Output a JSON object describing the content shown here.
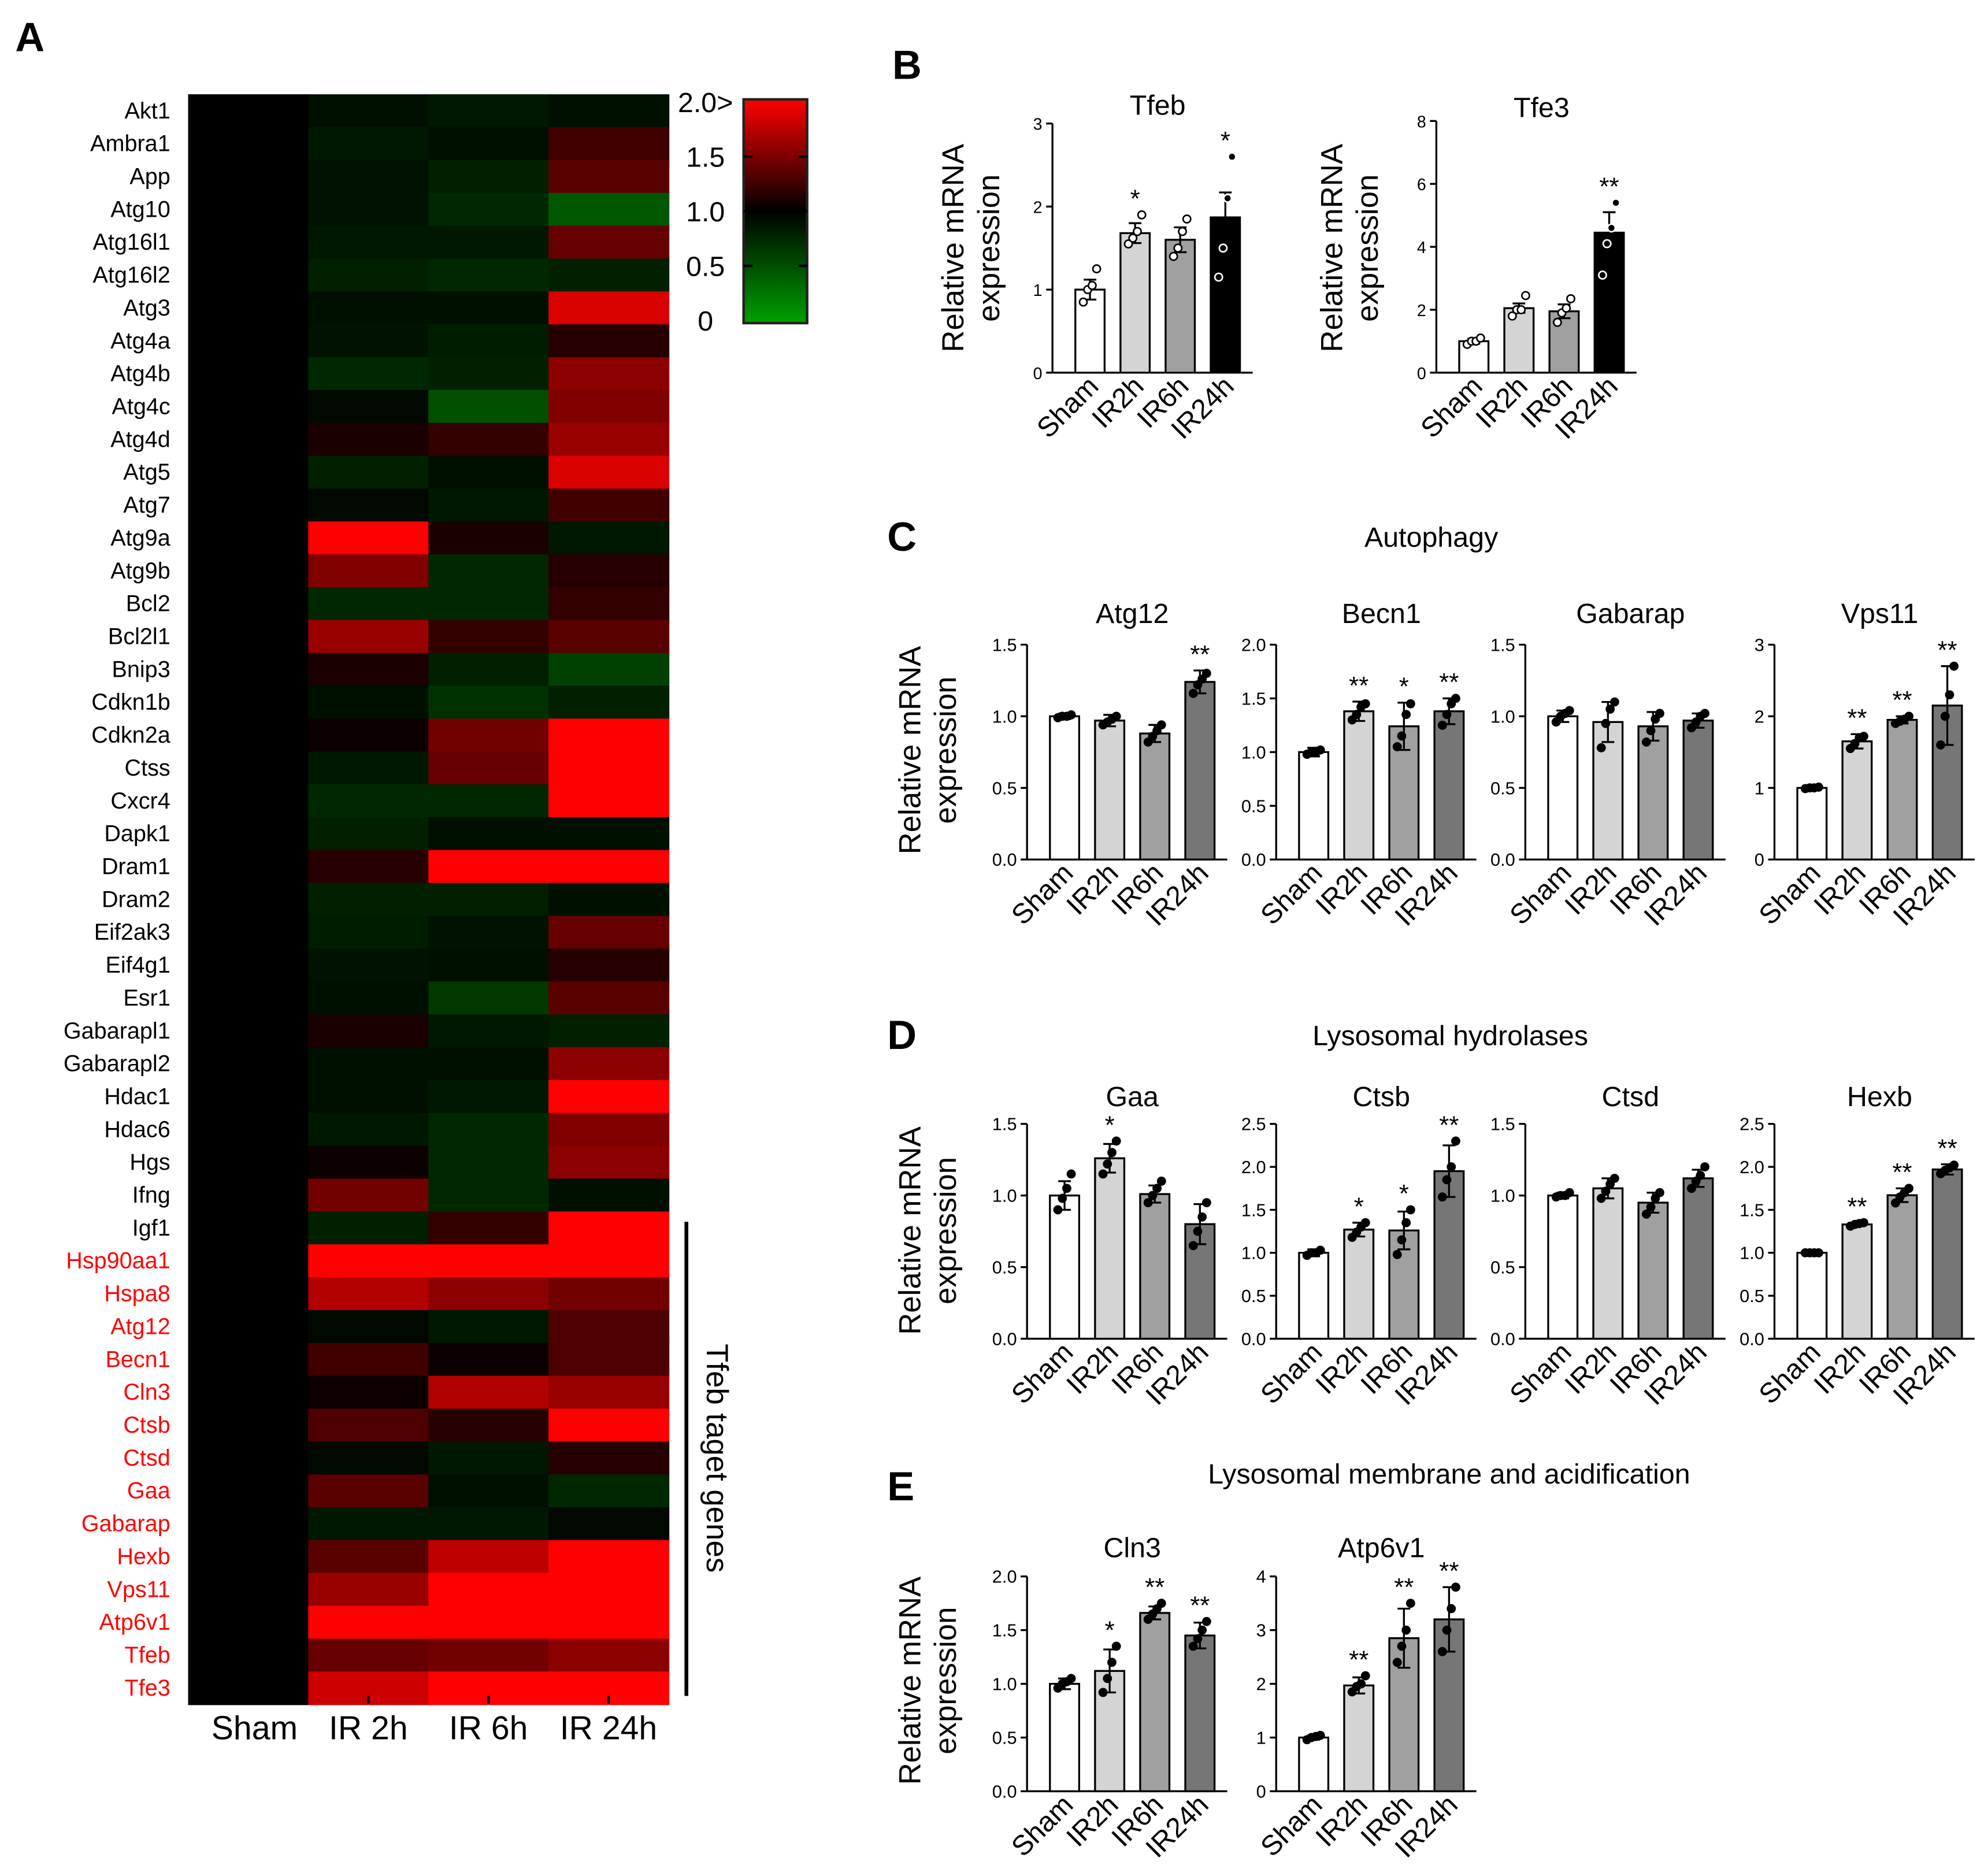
{
  "panels": {
    "A": {
      "letter": "A",
      "genes": [
        "Akt1",
        "Ambra1",
        "App",
        "Atg10",
        "Atg16l1",
        "Atg16l2",
        "Atg3",
        "Atg4a",
        "Atg4b",
        "Atg4c",
        "Atg4d",
        "Atg5",
        "Atg7",
        "Atg9a",
        "Atg9b",
        "Bcl2",
        "Bcl2l1",
        "Bnip3",
        "Cdkn1b",
        "Cdkn2a",
        "Ctss",
        "Cxcr4",
        "Dapk1",
        "Dram1",
        "Dram2",
        "Eif2ak3",
        "Eif4g1",
        "Esr1",
        "Gabarapl1",
        "Gabarapl2",
        "Hdac1",
        "Hdac6",
        "Hgs",
        "Ifng",
        "Igf1",
        "Hsp90aa1",
        "Hspa8",
        "Atg12",
        "Becn1",
        "Cln3",
        "Ctsb",
        "Ctsd",
        "Gaa",
        "Gabarap",
        "Hexb",
        "Vps11",
        "Atp6v1",
        "Tfeb",
        "Tfe3"
      ],
      "highlight_from_index": 35,
      "highlight_color": "#ff0000",
      "columns": [
        "Sham",
        "IR 2h",
        "IR 6h",
        "IR 24h"
      ],
      "side_label": "Tfeb taget genes",
      "colorbar": {
        "ticks": [
          "2.0>",
          "1.5",
          "1.0",
          "0.5",
          "0"
        ],
        "high_color": "#ff0000",
        "mid_color": "#000000",
        "low_color": "#00a000"
      }
    },
    "B": {
      "letter": "B"
    },
    "C": {
      "letter": "C",
      "title": "Autophagy"
    },
    "D": {
      "letter": "D",
      "title": "Lysosomal hydrolases"
    },
    "E": {
      "letter": "E",
      "title": "Lysosomal membrane and acidification"
    }
  },
  "ylabel_line1": "Relative mRNA",
  "ylabel_line2": "expression",
  "chart_data": [
    {
      "type": "heatmap",
      "panel": "A",
      "x": [
        "Sham",
        "IR 2h",
        "IR 6h",
        "IR 24h"
      ],
      "y": [
        "Akt1",
        "Ambra1",
        "App",
        "Atg10",
        "Atg16l1",
        "Atg16l2",
        "Atg3",
        "Atg4a",
        "Atg4b",
        "Atg4c",
        "Atg4d",
        "Atg5",
        "Atg7",
        "Atg9a",
        "Atg9b",
        "Bcl2",
        "Bcl2l1",
        "Bnip3",
        "Cdkn1b",
        "Cdkn2a",
        "Ctss",
        "Cxcr4",
        "Dapk1",
        "Dram1",
        "Dram2",
        "Eif2ak3",
        "Eif4g1",
        "Esr1",
        "Gabarapl1",
        "Gabarapl2",
        "Hdac1",
        "Hdac6",
        "Hgs",
        "Ifng",
        "Igf1",
        "Hsp90aa1",
        "Hspa8",
        "Atg12",
        "Becn1",
        "Cln3",
        "Ctsb",
        "Ctsd",
        "Gaa",
        "Gabarap",
        "Hexb",
        "Vps11",
        "Atp6v1",
        "Tfeb",
        "Tfe3"
      ],
      "values": [
        [
          1.0,
          0.9,
          0.85,
          0.9
        ],
        [
          1.0,
          0.85,
          0.9,
          1.25
        ],
        [
          1.0,
          0.88,
          0.8,
          1.35
        ],
        [
          1.0,
          0.88,
          0.75,
          0.45
        ],
        [
          1.0,
          0.85,
          0.85,
          1.4
        ],
        [
          1.0,
          0.8,
          0.75,
          0.8
        ],
        [
          1.0,
          0.9,
          0.9,
          1.85
        ],
        [
          1.0,
          0.88,
          0.82,
          1.15
        ],
        [
          1.0,
          0.75,
          0.8,
          1.55
        ],
        [
          1.0,
          0.95,
          0.5,
          1.5
        ],
        [
          1.0,
          1.1,
          1.2,
          1.6
        ],
        [
          1.0,
          0.8,
          0.9,
          1.85
        ],
        [
          1.0,
          0.95,
          0.85,
          1.25
        ],
        [
          1.0,
          2.0,
          1.1,
          0.85
        ],
        [
          1.0,
          1.5,
          0.75,
          1.15
        ],
        [
          1.0,
          0.75,
          0.75,
          1.2
        ],
        [
          1.0,
          1.6,
          1.2,
          1.35
        ],
        [
          1.0,
          1.1,
          0.8,
          0.6
        ],
        [
          1.0,
          0.9,
          0.7,
          0.8
        ],
        [
          1.0,
          1.05,
          1.45,
          2.0
        ],
        [
          1.0,
          0.85,
          1.4,
          2.0
        ],
        [
          1.0,
          0.75,
          0.75,
          2.0
        ],
        [
          1.0,
          0.8,
          0.9,
          0.9
        ],
        [
          1.0,
          1.15,
          2.0,
          2.0
        ],
        [
          1.0,
          0.8,
          0.8,
          0.9
        ],
        [
          1.0,
          0.82,
          0.88,
          1.4
        ],
        [
          1.0,
          0.88,
          0.9,
          1.15
        ],
        [
          1.0,
          0.9,
          0.65,
          1.35
        ],
        [
          1.0,
          1.1,
          0.85,
          0.8
        ],
        [
          1.0,
          0.9,
          0.9,
          1.55
        ],
        [
          1.0,
          0.9,
          0.85,
          2.0
        ],
        [
          1.0,
          0.85,
          0.75,
          1.5
        ],
        [
          1.0,
          1.05,
          0.75,
          1.55
        ],
        [
          1.0,
          1.45,
          0.75,
          0.9
        ],
        [
          1.0,
          0.8,
          1.2,
          2.0
        ],
        [
          1.0,
          2.0,
          2.0,
          2.0
        ],
        [
          1.0,
          1.7,
          1.55,
          1.45
        ],
        [
          1.0,
          0.95,
          0.85,
          1.3
        ],
        [
          1.0,
          1.25,
          1.05,
          1.3
        ],
        [
          1.0,
          1.05,
          1.7,
          1.6
        ],
        [
          1.0,
          1.3,
          1.15,
          2.0
        ],
        [
          1.0,
          0.95,
          0.85,
          1.15
        ],
        [
          1.0,
          1.35,
          0.9,
          0.75
        ],
        [
          1.0,
          0.85,
          0.85,
          0.95
        ],
        [
          1.0,
          1.35,
          1.75,
          2.0
        ],
        [
          1.0,
          1.6,
          2.0,
          2.0
        ],
        [
          1.0,
          2.0,
          2.0,
          2.0
        ],
        [
          1.0,
          1.4,
          1.45,
          1.55
        ],
        [
          1.0,
          1.8,
          2.0,
          2.0
        ]
      ],
      "color_scale": {
        "min": 0,
        "mid": 1.0,
        "max": 2.0
      }
    },
    {
      "type": "bar",
      "panel": "B",
      "title": "Tfeb",
      "categories": [
        "Sham",
        "IR2h",
        "IR6h",
        "IR24h"
      ],
      "values": [
        1.0,
        1.68,
        1.6,
        1.87
      ],
      "errors": [
        0.12,
        0.12,
        0.15,
        0.3
      ],
      "points": [
        [
          0.85,
          1.0,
          1.05,
          1.25
        ],
        [
          1.55,
          1.62,
          1.7,
          1.9
        ],
        [
          1.4,
          1.5,
          1.7,
          1.85
        ],
        [
          1.15,
          1.5,
          2.1,
          2.6
        ]
      ],
      "sig": [
        "",
        "*",
        "",
        "*"
      ],
      "ylim": [
        0,
        3
      ],
      "yticks": [
        0,
        1,
        2,
        3
      ],
      "open_points": true
    },
    {
      "type": "bar",
      "panel": "B",
      "title": "Tfe3",
      "categories": [
        "Sham",
        "IR2h",
        "IR6h",
        "IR24h"
      ],
      "values": [
        1.0,
        2.05,
        1.95,
        4.45
      ],
      "errors": [
        0.08,
        0.15,
        0.22,
        0.65
      ],
      "points": [
        [
          0.9,
          1.0,
          1.0,
          1.1
        ],
        [
          1.8,
          2.0,
          2.0,
          2.45
        ],
        [
          1.6,
          1.9,
          2.05,
          2.35
        ],
        [
          3.1,
          4.1,
          4.6,
          5.4
        ]
      ],
      "sig": [
        "",
        "",
        "",
        "**"
      ],
      "ylim": [
        0,
        8
      ],
      "yticks": [
        0,
        2,
        4,
        6,
        8
      ],
      "open_points": true
    },
    {
      "type": "bar",
      "panel": "C",
      "title": "Atg12",
      "categories": [
        "Sham",
        "IR2h",
        "IR6h",
        "IR24h"
      ],
      "values": [
        1.0,
        0.97,
        0.88,
        1.24
      ],
      "errors": [
        0.02,
        0.04,
        0.06,
        0.08
      ],
      "points": [
        [
          0.99,
          1.0,
          1.0,
          1.01
        ],
        [
          0.94,
          0.96,
          0.98,
          1.0
        ],
        [
          0.82,
          0.86,
          0.9,
          0.94
        ],
        [
          1.16,
          1.22,
          1.26,
          1.3
        ]
      ],
      "sig": [
        "",
        "",
        "",
        "**"
      ],
      "ylim": [
        0,
        1.5
      ],
      "yticks": [
        0.0,
        0.5,
        1.0,
        1.5
      ],
      "open_points": false
    },
    {
      "type": "bar",
      "panel": "C",
      "title": "Becn1",
      "categories": [
        "Sham",
        "IR2h",
        "IR6h",
        "IR24h"
      ],
      "values": [
        1.0,
        1.38,
        1.24,
        1.38
      ],
      "errors": [
        0.04,
        0.09,
        0.22,
        0.12
      ],
      "points": [
        [
          0.98,
          1.0,
          1.0,
          1.02
        ],
        [
          1.3,
          1.35,
          1.42,
          1.45
        ],
        [
          1.05,
          1.15,
          1.35,
          1.45
        ],
        [
          1.25,
          1.35,
          1.45,
          1.5
        ]
      ],
      "sig": [
        "",
        "**",
        "*",
        "**"
      ],
      "ylim": [
        0,
        2.0
      ],
      "yticks": [
        0.0,
        0.5,
        1.0,
        1.5,
        2.0
      ],
      "open_points": false
    },
    {
      "type": "bar",
      "panel": "C",
      "title": "Gabarap",
      "categories": [
        "Sham",
        "IR2h",
        "IR6h",
        "IR24h"
      ],
      "values": [
        1.0,
        0.96,
        0.93,
        0.97
      ],
      "errors": [
        0.04,
        0.14,
        0.1,
        0.05
      ],
      "points": [
        [
          0.96,
          1.0,
          1.02,
          1.04
        ],
        [
          0.78,
          0.95,
          1.05,
          1.1
        ],
        [
          0.82,
          0.9,
          0.98,
          1.02
        ],
        [
          0.92,
          0.96,
          1.0,
          1.02
        ]
      ],
      "sig": [
        "",
        "",
        "",
        ""
      ],
      "ylim": [
        0,
        1.5
      ],
      "yticks": [
        0.0,
        0.5,
        1.0,
        1.5
      ],
      "open_points": false
    },
    {
      "type": "bar",
      "panel": "C",
      "title": "Vps11",
      "categories": [
        "Sham",
        "IR2h",
        "IR6h",
        "IR24h"
      ],
      "values": [
        1.0,
        1.65,
        1.95,
        2.15
      ],
      "errors": [
        0.02,
        0.1,
        0.05,
        0.55
      ],
      "points": [
        [
          0.99,
          1.0,
          1.0,
          1.01
        ],
        [
          1.55,
          1.62,
          1.7,
          1.72
        ],
        [
          1.9,
          1.93,
          1.96,
          2.0
        ],
        [
          1.6,
          2.0,
          2.3,
          2.7
        ]
      ],
      "sig": [
        "",
        "**",
        "**",
        "**"
      ],
      "ylim": [
        0,
        3
      ],
      "yticks": [
        0,
        1,
        2,
        3
      ],
      "open_points": false
    },
    {
      "type": "bar",
      "panel": "D",
      "title": "Gaa",
      "categories": [
        "Sham",
        "IR2h",
        "IR6h",
        "IR24h"
      ],
      "values": [
        1.0,
        1.26,
        1.01,
        0.8
      ],
      "errors": [
        0.1,
        0.1,
        0.06,
        0.14
      ],
      "points": [
        [
          0.9,
          0.98,
          1.05,
          1.15
        ],
        [
          1.15,
          1.22,
          1.3,
          1.38
        ],
        [
          0.95,
          1.0,
          1.05,
          1.1
        ],
        [
          0.65,
          0.75,
          0.85,
          0.95
        ]
      ],
      "sig": [
        "",
        "*",
        "",
        ""
      ],
      "ylim": [
        0,
        1.5
      ],
      "yticks": [
        0.0,
        0.5,
        1.0,
        1.5
      ],
      "open_points": false
    },
    {
      "type": "bar",
      "panel": "D",
      "title": "Ctsb",
      "categories": [
        "Sham",
        "IR2h",
        "IR6h",
        "IR24h"
      ],
      "values": [
        1.0,
        1.27,
        1.26,
        1.95
      ],
      "errors": [
        0.04,
        0.08,
        0.22,
        0.3
      ],
      "points": [
        [
          0.97,
          1.0,
          1.0,
          1.03
        ],
        [
          1.18,
          1.24,
          1.3,
          1.35
        ],
        [
          0.98,
          1.15,
          1.35,
          1.5
        ],
        [
          1.65,
          1.85,
          2.0,
          2.3
        ]
      ],
      "sig": [
        "",
        "*",
        "*",
        "**"
      ],
      "ylim": [
        0,
        2.5
      ],
      "yticks": [
        0.0,
        0.5,
        1.0,
        1.5,
        2.0,
        2.5
      ],
      "open_points": false
    },
    {
      "type": "bar",
      "panel": "D",
      "title": "Ctsd",
      "categories": [
        "Sham",
        "IR2h",
        "IR6h",
        "IR24h"
      ],
      "values": [
        1.0,
        1.05,
        0.95,
        1.12
      ],
      "errors": [
        0.02,
        0.07,
        0.07,
        0.06
      ],
      "points": [
        [
          0.99,
          1.0,
          1.0,
          1.02
        ],
        [
          0.98,
          1.03,
          1.08,
          1.12
        ],
        [
          0.87,
          0.92,
          0.98,
          1.02
        ],
        [
          1.05,
          1.1,
          1.14,
          1.2
        ]
      ],
      "sig": [
        "",
        "",
        "",
        ""
      ],
      "ylim": [
        0,
        1.5
      ],
      "yticks": [
        0.0,
        0.5,
        1.0,
        1.5
      ],
      "open_points": false
    },
    {
      "type": "bar",
      "panel": "D",
      "title": "Hexb",
      "categories": [
        "Sham",
        "IR2h",
        "IR6h",
        "IR24h"
      ],
      "values": [
        1.0,
        1.33,
        1.67,
        1.97
      ],
      "errors": [
        0.01,
        0.02,
        0.08,
        0.06
      ],
      "points": [
        [
          1.0,
          1.0,
          1.0,
          1.0
        ],
        [
          1.31,
          1.33,
          1.34,
          1.35
        ],
        [
          1.58,
          1.65,
          1.7,
          1.75
        ],
        [
          1.92,
          1.96,
          1.99,
          2.02
        ]
      ],
      "sig": [
        "",
        "**",
        "**",
        "**"
      ],
      "ylim": [
        0,
        2.5
      ],
      "yticks": [
        0.0,
        0.5,
        1.0,
        1.5,
        2.0,
        2.5
      ],
      "open_points": false
    },
    {
      "type": "bar",
      "panel": "E",
      "title": "Cln3",
      "categories": [
        "Sham",
        "IR2h",
        "IR6h",
        "IR24h"
      ],
      "values": [
        1.0,
        1.12,
        1.66,
        1.45
      ],
      "errors": [
        0.05,
        0.2,
        0.06,
        0.12
      ],
      "points": [
        [
          0.96,
          1.0,
          1.02,
          1.05
        ],
        [
          0.92,
          1.05,
          1.2,
          1.35
        ],
        [
          1.6,
          1.65,
          1.7,
          1.75
        ],
        [
          1.35,
          1.42,
          1.5,
          1.58
        ]
      ],
      "sig": [
        "",
        "*",
        "**",
        "**"
      ],
      "ylim": [
        0,
        2.0
      ],
      "yticks": [
        0.0,
        0.5,
        1.0,
        1.5,
        2.0
      ],
      "open_points": false
    },
    {
      "type": "bar",
      "panel": "E",
      "title": "Atp6v1",
      "categories": [
        "Sham",
        "IR2h",
        "IR6h",
        "IR24h"
      ],
      "values": [
        1.0,
        1.97,
        2.85,
        3.2
      ],
      "errors": [
        0.04,
        0.15,
        0.55,
        0.6
      ],
      "points": [
        [
          0.96,
          1.0,
          1.02,
          1.04
        ],
        [
          1.85,
          1.95,
          2.0,
          2.15
        ],
        [
          2.4,
          2.7,
          3.0,
          3.5
        ],
        [
          2.6,
          3.0,
          3.4,
          3.8
        ]
      ],
      "sig": [
        "",
        "**",
        "**",
        "**"
      ],
      "ylim": [
        0,
        4
      ],
      "yticks": [
        0,
        1,
        2,
        3,
        4
      ],
      "open_points": false
    }
  ]
}
